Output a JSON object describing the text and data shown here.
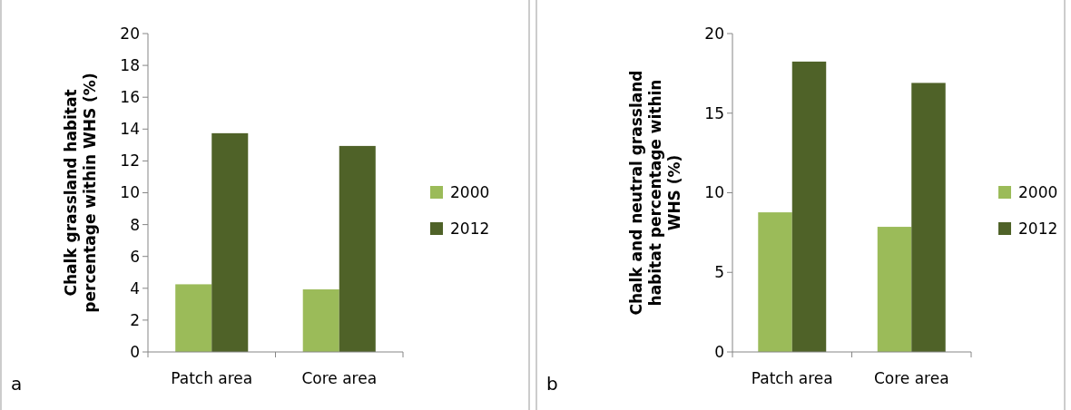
{
  "chart_data": [
    {
      "type": "bar",
      "categories": [
        "Patch area",
        "Core area"
      ],
      "ylabel": "Chalk grassland habitat percentage within WHS (%)",
      "ylim": [
        0,
        20
      ],
      "yticks": [
        0,
        2,
        4,
        6,
        8,
        10,
        12,
        14,
        16,
        18,
        20
      ],
      "legend": "right",
      "grid": false,
      "annotations": [
        "a"
      ],
      "series": [
        {
          "name": "2000",
          "color": "#9bbb59",
          "values": [
            4.25,
            3.93
          ]
        },
        {
          "name": "2012",
          "color": "#4f6228",
          "values": [
            13.74,
            12.94
          ]
        }
      ]
    },
    {
      "type": "bar",
      "categories": [
        "Patch area",
        "Core area"
      ],
      "ylabel": "Chalk and neutral grassland habitat percentage within WHS (%)",
      "ylim": [
        0,
        20
      ],
      "yticks": [
        0,
        5,
        10,
        15,
        20
      ],
      "legend": "right",
      "grid": false,
      "annotations": [
        "b"
      ],
      "series": [
        {
          "name": "2000",
          "color": "#9bbb59",
          "values": [
            8.77,
            7.86
          ]
        },
        {
          "name": "2012",
          "color": "#4f6228",
          "values": [
            18.24,
            16.9
          ]
        }
      ]
    }
  ]
}
